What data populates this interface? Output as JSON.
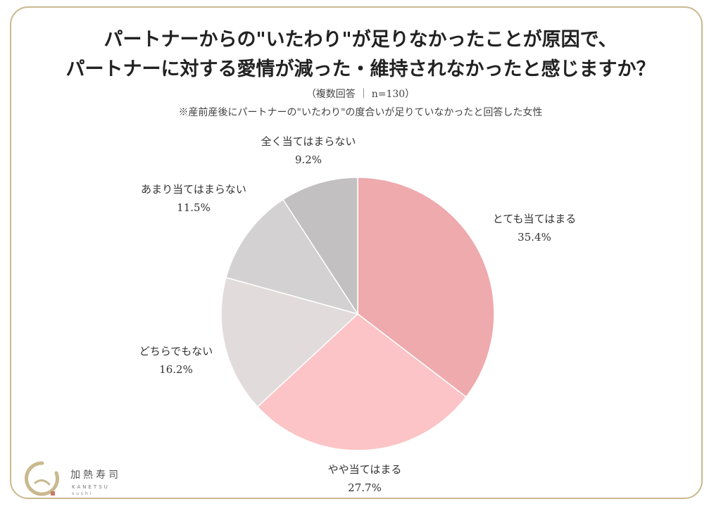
{
  "chart_data": {
    "type": "pie",
    "title_lines": [
      "パートナーからの\"いたわり\"が足りなかったことが原因で、",
      "パートナーに対する愛情が減った・維持されなかったと感じますか？"
    ],
    "subtitle": "（複数回答 ｜ n=130）",
    "note": "※産前産後にパートナーの\"いたわり\"の度合いが足りていなかったと回答した女性",
    "slices": [
      {
        "label": "とても当てはまる",
        "value": 35.4,
        "value_label": "35.4%",
        "color": "#eeaaad"
      },
      {
        "label": "やや当てはまる",
        "value": 27.7,
        "value_label": "27.7%",
        "color": "#fcc4c6"
      },
      {
        "label": "どちらでもない",
        "value": 16.2,
        "value_label": "16.2%",
        "color": "#e1dcdb"
      },
      {
        "label": "あまり当てはまらない",
        "value": 11.5,
        "value_label": "11.5%",
        "color": "#d3d1d1"
      },
      {
        "label": "全く当てはまらない",
        "value": 9.2,
        "value_label": "9.2%",
        "color": "#c2c0c0"
      }
    ]
  },
  "logo": {
    "name": "加熱寿司",
    "romaji": "KANETSU",
    "sub": "sushi"
  }
}
